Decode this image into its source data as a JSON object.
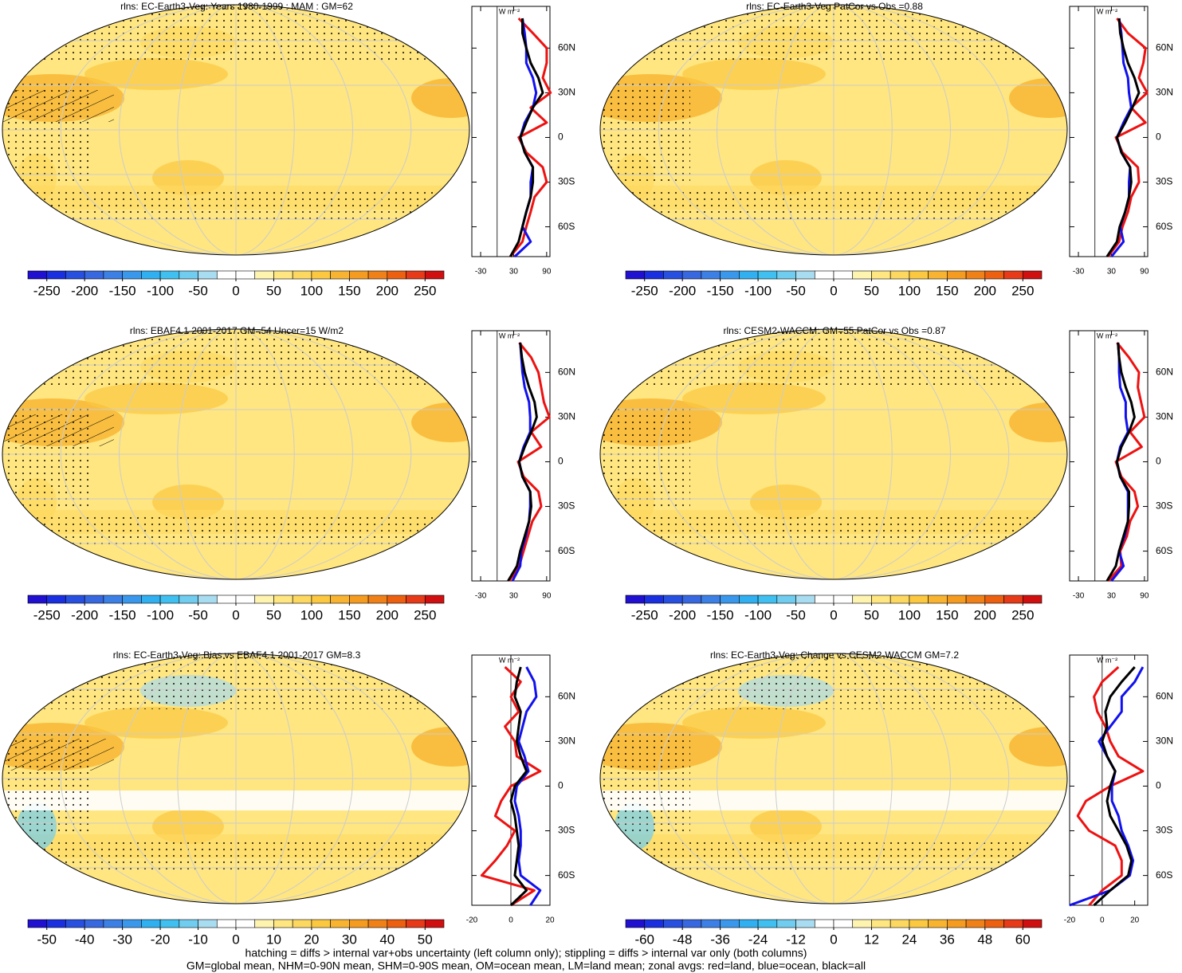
{
  "chart_data": [
    {
      "type": "map",
      "title": "rlns: EC-Earth3-Veg: Years 1980-1999 : MAM : GM=62",
      "colorbar": {
        "lim": [
          -275,
          275
        ],
        "ticks": [
          -250,
          -200,
          -150,
          -100,
          -50,
          0,
          50,
          100,
          150,
          200,
          250
        ],
        "colors": [
          "#2010d0",
          "#1a30e0",
          "#2850e0",
          "#3868e0",
          "#3c80e6",
          "#3a98ec",
          "#30b0f0",
          "#40c0f0",
          "#70cdf0",
          "#a8dcf0",
          "#ffffff",
          "#ffffff",
          "#fff3b0",
          "#ffe680",
          "#fdd860",
          "#fbc840",
          "#f8b430",
          "#f59c20",
          "#f08018",
          "#ec6010",
          "#e63a18",
          "#d01010"
        ]
      },
      "profile": {
        "type": "line",
        "xlabel": "W m⁻²",
        "lat": [
          -80,
          -70,
          -60,
          -50,
          -40,
          -30,
          -20,
          -10,
          0,
          10,
          20,
          30,
          40,
          50,
          60,
          70,
          80
        ],
        "xlim": [
          -46,
          96
        ],
        "xticks": [
          -30,
          30,
          90
        ],
        "ylim": [
          -80,
          88
        ],
        "yticks": [
          {
            "value": 60,
            "label": "60N"
          },
          {
            "value": 30,
            "label": "30N"
          },
          0,
          {
            "value": -30,
            "label": "30S"
          },
          {
            "value": -60,
            "label": "60S"
          }
        ],
        "series": [
          {
            "color": "#ee1111",
            "values": [
              24,
              46,
              53,
              61,
              68,
              90,
              83,
              53,
              39,
              90,
              61,
              97,
              83,
              90,
              90,
              65,
              39
            ]
          },
          {
            "color": "#1111ee",
            "values": [
              32,
              61,
              46,
              53,
              61,
              61,
              65,
              50,
              42,
              50,
              65,
              71,
              65,
              53,
              53,
              50,
              46
            ]
          },
          {
            "color": "#000000",
            "values": [
              24,
              39,
              46,
              53,
              61,
              65,
              65,
              50,
              42,
              53,
              65,
              83,
              75,
              61,
              53,
              46,
              46
            ]
          }
        ]
      }
    },
    {
      "type": "map",
      "title": "rlns: EC-Earth3-Veg PatCor vs Obs =0.88",
      "colorbar": {
        "lim": [
          -275,
          275
        ],
        "ticks": [
          -250,
          -200,
          -150,
          -100,
          -50,
          0,
          50,
          100,
          150,
          200,
          250
        ],
        "colors": [
          "#2010d0",
          "#1a30e0",
          "#2850e0",
          "#3868e0",
          "#3c80e6",
          "#3a98ec",
          "#30b0f0",
          "#40c0f0",
          "#70cdf0",
          "#a8dcf0",
          "#ffffff",
          "#ffffff",
          "#fff3b0",
          "#ffe680",
          "#fdd860",
          "#fbc840",
          "#f8b430",
          "#f59c20",
          "#f08018",
          "#ec6010",
          "#e63a18",
          "#d01010"
        ]
      },
      "profile": {
        "type": "line",
        "xlabel": "W m⁻²",
        "lat": [
          -80,
          -70,
          -60,
          -50,
          -40,
          -30,
          -20,
          -10,
          0,
          10,
          20,
          30,
          40,
          50,
          60,
          70,
          80
        ],
        "xlim": [
          -46,
          96
        ],
        "xticks": [
          -30,
          30,
          90
        ],
        "ylim": [
          -80,
          88
        ],
        "yticks": [
          {
            "value": 60,
            "label": "60N"
          },
          {
            "value": 30,
            "label": "30N"
          },
          0,
          {
            "value": -30,
            "label": "30S"
          },
          {
            "value": -60,
            "label": "60S"
          }
        ],
        "series": [
          {
            "color": "#ee1111",
            "values": [
              24,
              44,
              50,
              60,
              66,
              80,
              78,
              50,
              38,
              92,
              66,
              95,
              80,
              88,
              92,
              60,
              40
            ]
          },
          {
            "color": "#1111ee",
            "values": [
              30,
              52,
              46,
              55,
              62,
              62,
              64,
              48,
              40,
              52,
              66,
              62,
              60,
              52,
              50,
              48,
              44
            ]
          },
          {
            "color": "#000000",
            "values": [
              22,
              40,
              45,
              55,
              62,
              66,
              64,
              48,
              40,
              55,
              68,
              80,
              72,
              60,
              52,
              46,
              44
            ]
          }
        ]
      }
    },
    {
      "type": "map",
      "title": "rlns: EBAF4.1 2001-2017 GM=54 Uncer=15 W/m2",
      "colorbar": {
        "lim": [
          -275,
          275
        ],
        "ticks": [
          -250,
          -200,
          -150,
          -100,
          -50,
          0,
          50,
          100,
          150,
          200,
          250
        ],
        "colors": [
          "#2010d0",
          "#1a30e0",
          "#2850e0",
          "#3868e0",
          "#3c80e6",
          "#3a98ec",
          "#30b0f0",
          "#40c0f0",
          "#70cdf0",
          "#a8dcf0",
          "#ffffff",
          "#ffffff",
          "#fff3b0",
          "#ffe680",
          "#fdd860",
          "#fbc840",
          "#f8b430",
          "#f59c20",
          "#f08018",
          "#ec6010",
          "#e63a18",
          "#d01010"
        ]
      },
      "profile": {
        "type": "line",
        "xlabel": "W m⁻²",
        "lat": [
          -80,
          -70,
          -60,
          -50,
          -40,
          -30,
          -20,
          -10,
          0,
          10,
          20,
          30,
          40,
          50,
          60,
          70,
          80
        ],
        "xlim": [
          -46,
          96
        ],
        "xticks": [
          -30,
          30,
          90
        ],
        "ylim": [
          -80,
          88
        ],
        "yticks": [
          {
            "value": 60,
            "label": "60N"
          },
          {
            "value": 30,
            "label": "30N"
          },
          0,
          {
            "value": -30,
            "label": "30S"
          },
          {
            "value": -60,
            "label": "60S"
          }
        ],
        "series": [
          {
            "color": "#ee1111",
            "values": [
              22,
              40,
              48,
              56,
              64,
              80,
              75,
              48,
              38,
              80,
              62,
              95,
              85,
              80,
              75,
              62,
              40
            ]
          },
          {
            "color": "#1111ee",
            "values": [
              28,
              42,
              44,
              52,
              58,
              60,
              60,
              46,
              40,
              48,
              60,
              60,
              58,
              50,
              46,
              44,
              42
            ]
          },
          {
            "color": "#000000",
            "values": [
              20,
              36,
              42,
              50,
              58,
              62,
              60,
              46,
              40,
              50,
              62,
              72,
              68,
              58,
              50,
              45,
              42
            ]
          }
        ]
      }
    },
    {
      "type": "map",
      "title": "rlns: CESM2-WACCM: GM=55 PatCor vs Obs =0.87",
      "colorbar": {
        "lim": [
          -275,
          275
        ],
        "ticks": [
          -250,
          -200,
          -150,
          -100,
          -50,
          0,
          50,
          100,
          150,
          200,
          250
        ],
        "colors": [
          "#2010d0",
          "#1a30e0",
          "#2850e0",
          "#3868e0",
          "#3c80e6",
          "#3a98ec",
          "#30b0f0",
          "#40c0f0",
          "#70cdf0",
          "#a8dcf0",
          "#ffffff",
          "#ffffff",
          "#fff3b0",
          "#ffe680",
          "#fdd860",
          "#fbc840",
          "#f8b430",
          "#f59c20",
          "#f08018",
          "#ec6010",
          "#e63a18",
          "#d01010"
        ]
      },
      "profile": {
        "type": "line",
        "xlabel": "W m⁻²",
        "lat": [
          -80,
          -70,
          -60,
          -50,
          -40,
          -30,
          -20,
          -10,
          0,
          10,
          20,
          30,
          40,
          50,
          60,
          70,
          80
        ],
        "xlim": [
          -46,
          96
        ],
        "xticks": [
          -30,
          30,
          90
        ],
        "ylim": [
          -80,
          88
        ],
        "yticks": [
          {
            "value": 60,
            "label": "60N"
          },
          {
            "value": 30,
            "label": "30N"
          },
          0,
          {
            "value": -30,
            "label": "30S"
          },
          {
            "value": -60,
            "label": "60S"
          }
        ],
        "series": [
          {
            "color": "#ee1111",
            "values": [
              24,
              48,
              46,
              58,
              64,
              78,
              72,
              48,
              38,
              85,
              64,
              90,
              84,
              78,
              80,
              62,
              40
            ]
          },
          {
            "color": "#1111ee",
            "values": [
              30,
              52,
              44,
              54,
              60,
              60,
              60,
              46,
              40,
              46,
              60,
              56,
              56,
              46,
              44,
              44,
              42
            ]
          },
          {
            "color": "#000000",
            "values": [
              22,
              38,
              44,
              52,
              60,
              62,
              62,
              46,
              40,
              48,
              62,
              72,
              66,
              56,
              48,
              44,
              42
            ]
          }
        ]
      }
    },
    {
      "type": "map",
      "title": "rlns: EC-Earth3-Veg: Bias vs EBAF4.1 2001-2017 GM=8.3",
      "colorbar": {
        "lim": [
          -55,
          55
        ],
        "ticks": [
          -50,
          -40,
          -30,
          -20,
          -10,
          0,
          10,
          20,
          30,
          40,
          50
        ],
        "colors": [
          "#2010d0",
          "#1a30e0",
          "#2850e0",
          "#3868e0",
          "#3c80e6",
          "#3a98ec",
          "#30b0f0",
          "#40c0f0",
          "#70cdf0",
          "#a8dcf0",
          "#ffffff",
          "#ffffff",
          "#fff3b0",
          "#ffe680",
          "#fdd860",
          "#fbc840",
          "#f8b430",
          "#f59c20",
          "#f08018",
          "#ec6010",
          "#e63a18",
          "#d01010"
        ]
      },
      "profile": {
        "type": "line",
        "xlabel": "W m⁻²",
        "lat": [
          -80,
          -70,
          -60,
          -50,
          -40,
          -30,
          -20,
          -10,
          0,
          10,
          20,
          30,
          40,
          50,
          60,
          70,
          80
        ],
        "xlim": [
          -20,
          20
        ],
        "xticks": [
          -20,
          0,
          20
        ],
        "ylim": [
          -80,
          88
        ],
        "yticks": [
          {
            "value": 60,
            "label": "60N"
          },
          {
            "value": 30,
            "label": "30N"
          },
          0,
          {
            "value": -30,
            "label": "30S"
          },
          {
            "value": -60,
            "label": "60S"
          }
        ],
        "series": [
          {
            "color": "#ee1111",
            "values": [
              0,
              12,
              -15,
              -8,
              -2,
              2,
              -8,
              -5,
              0,
              15,
              3,
              2,
              -3,
              4,
              0,
              5,
              -3
            ]
          },
          {
            "color": "#1111ee",
            "values": [
              10,
              15,
              5,
              4,
              5,
              5,
              4,
              2,
              3,
              9,
              7,
              4,
              6,
              8,
              13,
              12,
              8
            ]
          },
          {
            "color": "#000000",
            "values": [
              0,
              8,
              2,
              3,
              4,
              3,
              2,
              0,
              2,
              8,
              5,
              3,
              4,
              5,
              2,
              3,
              5
            ]
          }
        ]
      }
    },
    {
      "type": "map",
      "title": "rlns: EC-Earth3-Veg: Change vs CESM2-WACCM GM=7.2",
      "colorbar": {
        "lim": [
          -66,
          66
        ],
        "ticks": [
          -60,
          -48,
          -36,
          -24,
          -12,
          0,
          12,
          24,
          36,
          48,
          60
        ],
        "colors": [
          "#2010d0",
          "#1a30e0",
          "#2850e0",
          "#3868e0",
          "#3c80e6",
          "#3a98ec",
          "#30b0f0",
          "#40c0f0",
          "#70cdf0",
          "#a8dcf0",
          "#ffffff",
          "#ffffff",
          "#fff3b0",
          "#ffe680",
          "#fdd860",
          "#fbc840",
          "#f8b430",
          "#f59c20",
          "#f08018",
          "#ec6010",
          "#e63a18",
          "#d01010"
        ]
      },
      "profile": {
        "type": "line",
        "xlabel": "W m⁻²",
        "lat": [
          -80,
          -70,
          -60,
          -50,
          -40,
          -30,
          -20,
          -10,
          0,
          10,
          20,
          30,
          40,
          50,
          60,
          70,
          80
        ],
        "xlim": [
          -20,
          28
        ],
        "xticks": [
          -20,
          0,
          20
        ],
        "ylim": [
          -80,
          88
        ],
        "yticks": [
          {
            "value": 60,
            "label": "60N"
          },
          {
            "value": 30,
            "label": "30N"
          },
          0,
          {
            "value": -30,
            "label": "30S"
          },
          {
            "value": -60,
            "label": "60S"
          }
        ],
        "series": [
          {
            "color": "#ee1111",
            "values": [
              -8,
              0,
              12,
              12,
              8,
              -8,
              -15,
              -10,
              5,
              25,
              10,
              5,
              2,
              -3,
              -5,
              0,
              10
            ]
          },
          {
            "color": "#1111ee",
            "values": [
              -20,
              5,
              17,
              19,
              16,
              12,
              10,
              6,
              6,
              8,
              3,
              -2,
              5,
              12,
              12,
              20,
              25
            ]
          },
          {
            "color": "#000000",
            "values": [
              -5,
              5,
              16,
              18,
              15,
              10,
              5,
              3,
              5,
              8,
              3,
              0,
              3,
              2,
              5,
              12,
              20
            ]
          }
        ]
      }
    }
  ],
  "footnote": [
    "hatching = diffs > internal var+obs uncertainty (left column only); stippling = diffs > internal var only (both columns)",
    "GM=global mean, NHM=0-90N mean, SHM=0-90S mean, OM=ocean mean, LM=land mean; zonal avgs: red=land, blue=ocean, black=all"
  ]
}
